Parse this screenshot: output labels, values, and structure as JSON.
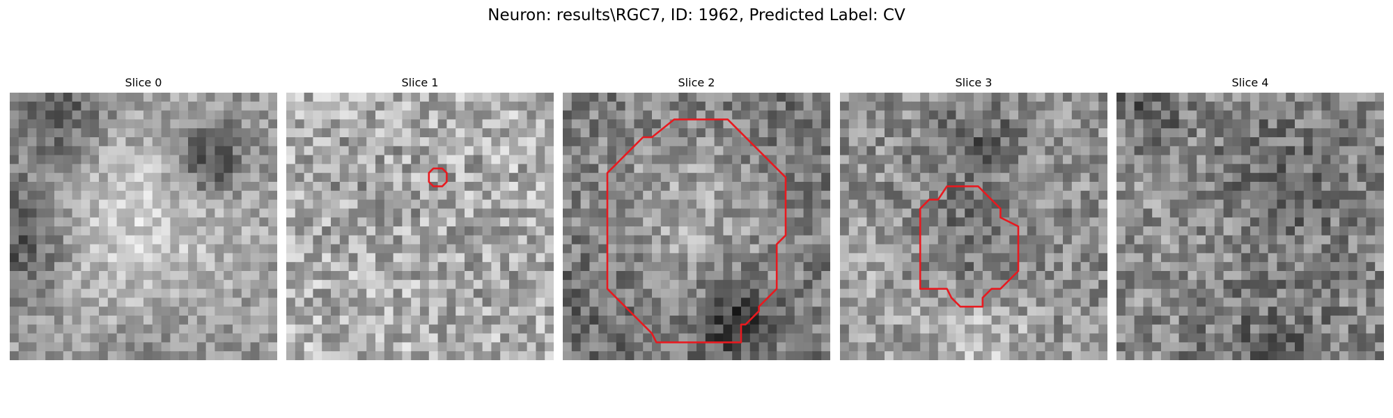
{
  "figure": {
    "title": "Neuron: results\\RGC7, ID: 1962, Predicted Label: CV"
  },
  "panels": [
    {
      "title": "Slice 0",
      "roi": false
    },
    {
      "title": "Slice 1",
      "roi": true
    },
    {
      "title": "Slice 2",
      "roi": true
    },
    {
      "title": "Slice 3",
      "roi": true
    },
    {
      "title": "Slice 4",
      "roi": false
    }
  ],
  "colors": {
    "contour": "#e8191f",
    "background": "#ffffff"
  }
}
